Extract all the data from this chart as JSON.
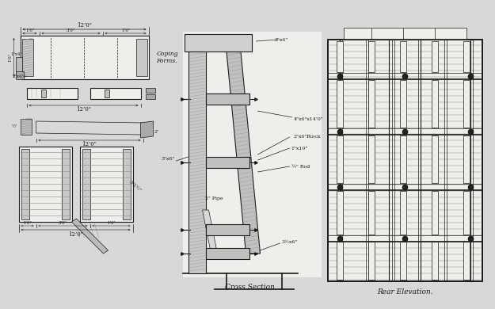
{
  "bg_color": "#d8d8d8",
  "paper_color": "#f0eeea",
  "line_color": "#1a1a1a",
  "title": "Cross Section",
  "title2": "Rear Elevation.",
  "labels": {
    "coping": "Coping\nForms.",
    "dim_12ft_top": "12’0\"",
    "dim_1ft6_a": "1’6\"",
    "dim_3ft0": "3’0\"",
    "dim_1ft6_b": "1’6\"",
    "dim_1x4": "1\"x4\"",
    "dim_1ft6_vert": "1’6\"",
    "dim_2x4half": "2\"x4½",
    "dim_12ft_2": "12’0\"",
    "dim_12ft_3": "12’0\"",
    "dim_12ft_4": "12’0\"",
    "dim_half": "½\"",
    "dim_2in": "2\"",
    "dim_3ft2half": "3’2½\"",
    "dim_1ft6_bot_a": "1’6\"",
    "dim_3ft0_bot": "3’0\"",
    "dim_1ft6_bot_b": "1’6\"",
    "d_3x6_top": "3\"x6\"",
    "d_3x6_mid": "3\"x6\"",
    "d_3x6_bot": "3½x6\"",
    "d_4x6": "4\"x6\"x14’0\"",
    "d_block": "2\"x6\"Block",
    "d_1x10": "1\"x10\"",
    "d_rod": "¾\" Rod",
    "d_pipe": "2\" Pipe"
  }
}
